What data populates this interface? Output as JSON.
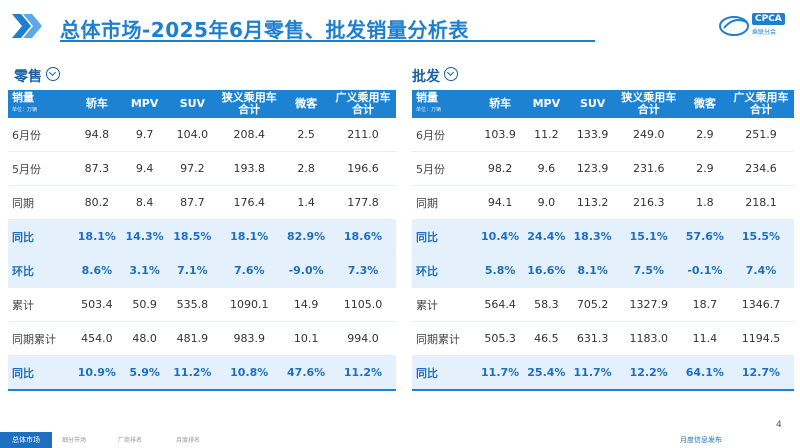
{
  "title": "总体市场-2025年6月零售、批发销量分析表",
  "logo": {
    "text": "CPCA",
    "sub": "乘联分会"
  },
  "retail_label": "零售",
  "wholesale_label": "批发",
  "header": {
    "first": "销量",
    "unit": "单位：万辆",
    "cols": [
      "轿车",
      "MPV",
      "SUV",
      "狭义乘用车合计",
      "微客",
      "广义乘用车合计"
    ]
  },
  "retail": [
    {
      "label": "6月份",
      "values": [
        "94.8",
        "9.7",
        "104.0",
        "208.4",
        "2.5",
        "211.0"
      ]
    },
    {
      "label": "5月份",
      "values": [
        "87.3",
        "9.4",
        "97.2",
        "193.8",
        "2.8",
        "196.6"
      ]
    },
    {
      "label": "同期",
      "values": [
        "80.2",
        "8.4",
        "87.7",
        "176.4",
        "1.4",
        "177.8"
      ]
    },
    {
      "label": "同比",
      "values": [
        "18.1%",
        "14.3%",
        "18.5%",
        "18.1%",
        "82.9%",
        "18.6%"
      ]
    },
    {
      "label": "环比",
      "values": [
        "8.6%",
        "3.1%",
        "7.1%",
        "7.6%",
        "-9.0%",
        "7.3%"
      ]
    },
    {
      "label": "累计",
      "values": [
        "503.4",
        "50.9",
        "535.8",
        "1090.1",
        "14.9",
        "1105.0"
      ]
    },
    {
      "label": "同期累计",
      "values": [
        "454.0",
        "48.0",
        "481.9",
        "983.9",
        "10.1",
        "994.0"
      ]
    },
    {
      "label": "同比",
      "values": [
        "10.9%",
        "5.9%",
        "11.2%",
        "10.8%",
        "47.6%",
        "11.2%"
      ]
    }
  ],
  "wholesale": [
    {
      "label": "6月份",
      "values": [
        "103.9",
        "11.2",
        "133.9",
        "249.0",
        "2.9",
        "251.9"
      ]
    },
    {
      "label": "5月份",
      "values": [
        "98.2",
        "9.6",
        "123.9",
        "231.6",
        "2.9",
        "234.6"
      ]
    },
    {
      "label": "同期",
      "values": [
        "94.1",
        "9.0",
        "113.2",
        "216.3",
        "1.8",
        "218.1"
      ]
    },
    {
      "label": "同比",
      "values": [
        "10.4%",
        "24.4%",
        "18.3%",
        "15.1%",
        "57.6%",
        "15.5%"
      ]
    },
    {
      "label": "环比",
      "values": [
        "5.8%",
        "16.6%",
        "8.1%",
        "7.5%",
        "-0.1%",
        "7.4%"
      ]
    },
    {
      "label": "累计",
      "values": [
        "564.4",
        "58.3",
        "705.2",
        "1327.9",
        "18.7",
        "1346.7"
      ]
    },
    {
      "label": "同期累计",
      "values": [
        "505.3",
        "46.5",
        "631.3",
        "1183.0",
        "11.4",
        "1194.5"
      ]
    },
    {
      "label": "同比",
      "values": [
        "11.7%",
        "25.4%",
        "11.7%",
        "12.2%",
        "64.1%",
        "12.7%"
      ]
    }
  ],
  "footer": {
    "tag": "总体市场",
    "items": [
      "细分市场",
      "厂商排名",
      "月度排名"
    ],
    "right": "月度信息发布"
  },
  "page_number": "4",
  "colors": {
    "accent": "#1e82d2",
    "highlight_row": "#e4f0fb"
  }
}
